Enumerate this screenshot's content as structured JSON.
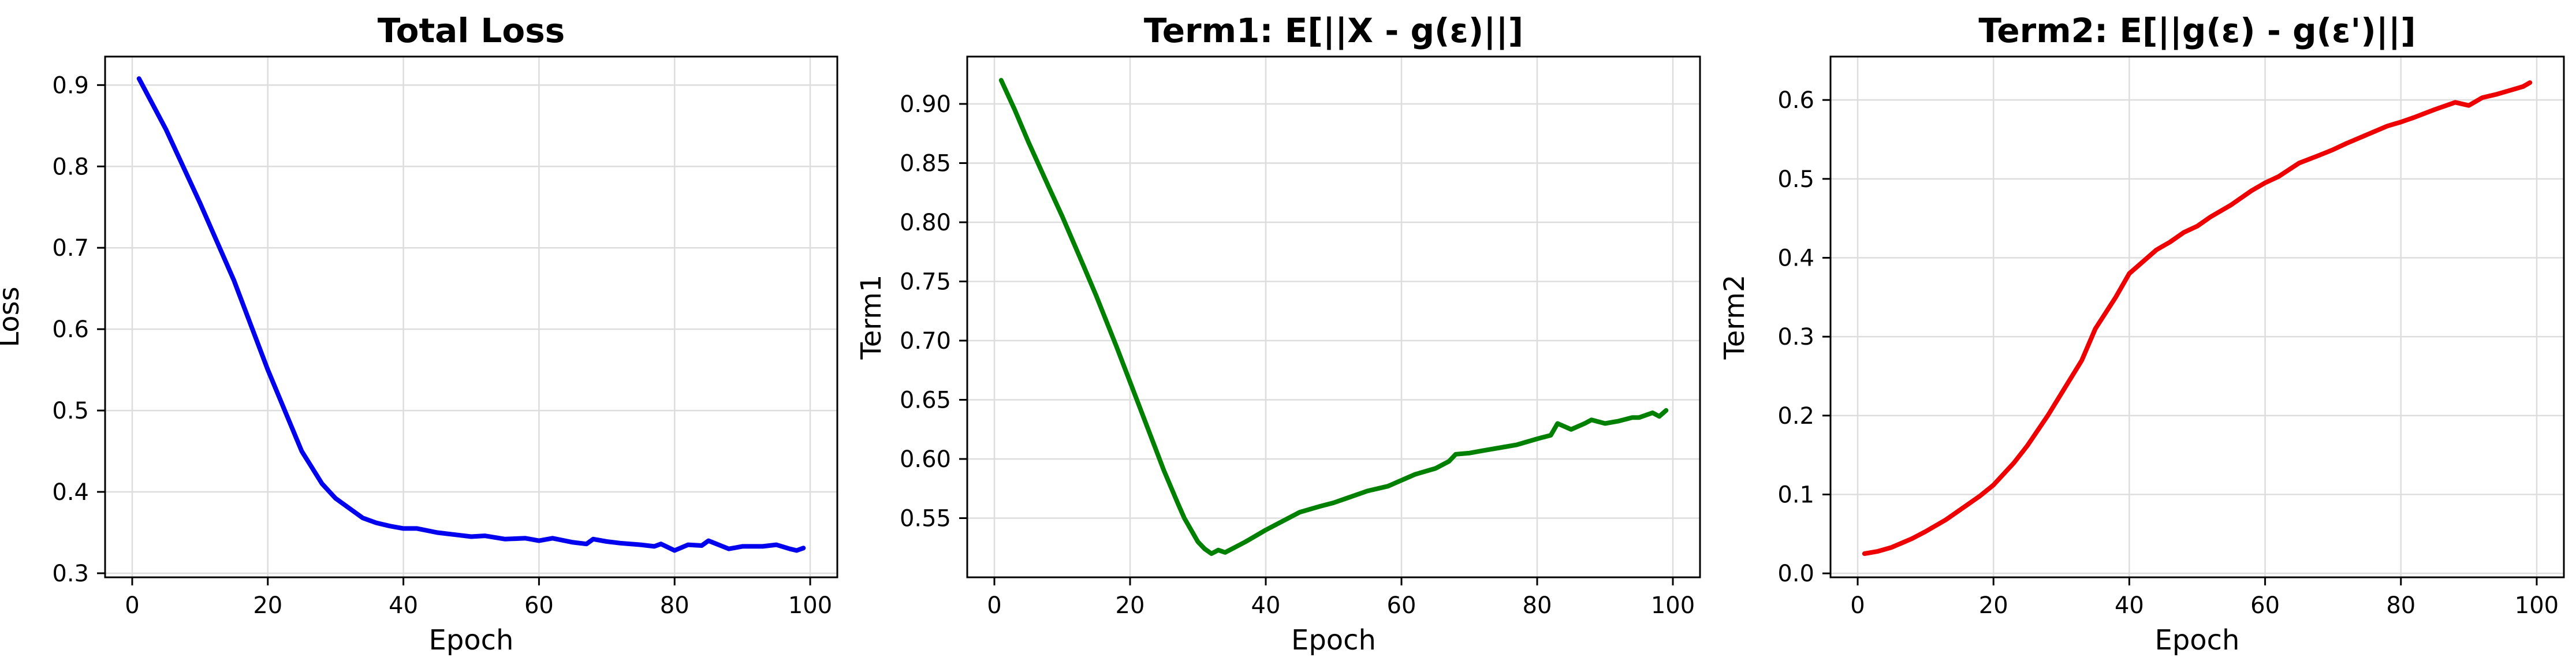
{
  "chart_data": [
    {
      "type": "line",
      "title": "Total Loss",
      "xlabel": "Epoch",
      "ylabel": "Loss",
      "xlim": [
        -4,
        104
      ],
      "ylim": [
        0.295,
        0.935
      ],
      "xticks": [
        0,
        20,
        40,
        60,
        80,
        100
      ],
      "yticks": [
        0.3,
        0.4,
        0.5,
        0.6,
        0.7,
        0.8,
        0.9
      ],
      "ytick_decimals": 1,
      "grid": true,
      "color": "#0000ee",
      "series": [
        {
          "x": [
            1,
            5,
            10,
            15,
            20,
            25,
            28,
            30,
            32,
            34,
            36,
            38,
            40,
            42,
            45,
            48,
            50,
            52,
            55,
            58,
            60,
            62,
            65,
            67,
            68,
            70,
            72,
            75,
            77,
            78,
            80,
            82,
            84,
            85,
            88,
            90,
            93,
            95,
            97,
            98,
            99
          ],
          "y": [
            0.908,
            0.845,
            0.755,
            0.66,
            0.55,
            0.45,
            0.41,
            0.392,
            0.38,
            0.368,
            0.362,
            0.358,
            0.355,
            0.355,
            0.35,
            0.347,
            0.345,
            0.346,
            0.342,
            0.343,
            0.34,
            0.343,
            0.338,
            0.336,
            0.342,
            0.339,
            0.337,
            0.335,
            0.333,
            0.336,
            0.328,
            0.335,
            0.334,
            0.34,
            0.33,
            0.333,
            0.333,
            0.335,
            0.33,
            0.328,
            0.331
          ]
        }
      ]
    },
    {
      "type": "line",
      "title": "Term1: E[||X - g(ε)||]",
      "xlabel": "Epoch",
      "ylabel": "Term1",
      "xlim": [
        -4,
        104
      ],
      "ylim": [
        0.5,
        0.94
      ],
      "xticks": [
        0,
        20,
        40,
        60,
        80,
        100
      ],
      "yticks": [
        0.55,
        0.6,
        0.65,
        0.7,
        0.75,
        0.8,
        0.85,
        0.9
      ],
      "ytick_decimals": 2,
      "grid": true,
      "color": "#008000",
      "series": [
        {
          "x": [
            1,
            3,
            5,
            8,
            10,
            13,
            15,
            18,
            20,
            23,
            25,
            27,
            28,
            30,
            31,
            32,
            33,
            34,
            35,
            37,
            40,
            42,
            45,
            48,
            50,
            52,
            55,
            58,
            60,
            62,
            65,
            67,
            68,
            70,
            72,
            75,
            77,
            80,
            82,
            83,
            85,
            87,
            88,
            90,
            92,
            94,
            95,
            97,
            98,
            99
          ],
          "y": [
            0.92,
            0.895,
            0.868,
            0.83,
            0.805,
            0.765,
            0.738,
            0.695,
            0.665,
            0.62,
            0.59,
            0.563,
            0.55,
            0.53,
            0.524,
            0.52,
            0.523,
            0.521,
            0.524,
            0.53,
            0.54,
            0.546,
            0.555,
            0.56,
            0.563,
            0.567,
            0.573,
            0.577,
            0.582,
            0.587,
            0.592,
            0.598,
            0.604,
            0.605,
            0.607,
            0.61,
            0.612,
            0.617,
            0.62,
            0.63,
            0.625,
            0.63,
            0.633,
            0.63,
            0.632,
            0.635,
            0.635,
            0.639,
            0.636,
            0.641
          ]
        }
      ]
    },
    {
      "type": "line",
      "title": "Term2: E[||g(ε) - g(ε')||]",
      "xlabel": "Epoch",
      "ylabel": "Term2",
      "xlim": [
        -4,
        104
      ],
      "ylim": [
        -0.005,
        0.655
      ],
      "xticks": [
        0,
        20,
        40,
        60,
        80,
        100
      ],
      "yticks": [
        0.0,
        0.1,
        0.2,
        0.3,
        0.4,
        0.5,
        0.6
      ],
      "ytick_decimals": 1,
      "grid": true,
      "color": "#ee0000",
      "series": [
        {
          "x": [
            1,
            3,
            5,
            8,
            10,
            13,
            15,
            18,
            20,
            23,
            25,
            28,
            30,
            33,
            35,
            38,
            40,
            42,
            44,
            46,
            48,
            50,
            52,
            55,
            58,
            60,
            62,
            65,
            68,
            70,
            72,
            75,
            78,
            80,
            82,
            85,
            88,
            90,
            92,
            94,
            96,
            98,
            99
          ],
          "y": [
            0.025,
            0.028,
            0.033,
            0.044,
            0.053,
            0.068,
            0.08,
            0.098,
            0.112,
            0.14,
            0.162,
            0.2,
            0.228,
            0.27,
            0.31,
            0.35,
            0.38,
            0.395,
            0.41,
            0.42,
            0.432,
            0.44,
            0.452,
            0.467,
            0.485,
            0.495,
            0.503,
            0.52,
            0.53,
            0.537,
            0.545,
            0.556,
            0.567,
            0.572,
            0.578,
            0.588,
            0.597,
            0.593,
            0.603,
            0.607,
            0.612,
            0.617,
            0.622
          ]
        }
      ]
    }
  ]
}
